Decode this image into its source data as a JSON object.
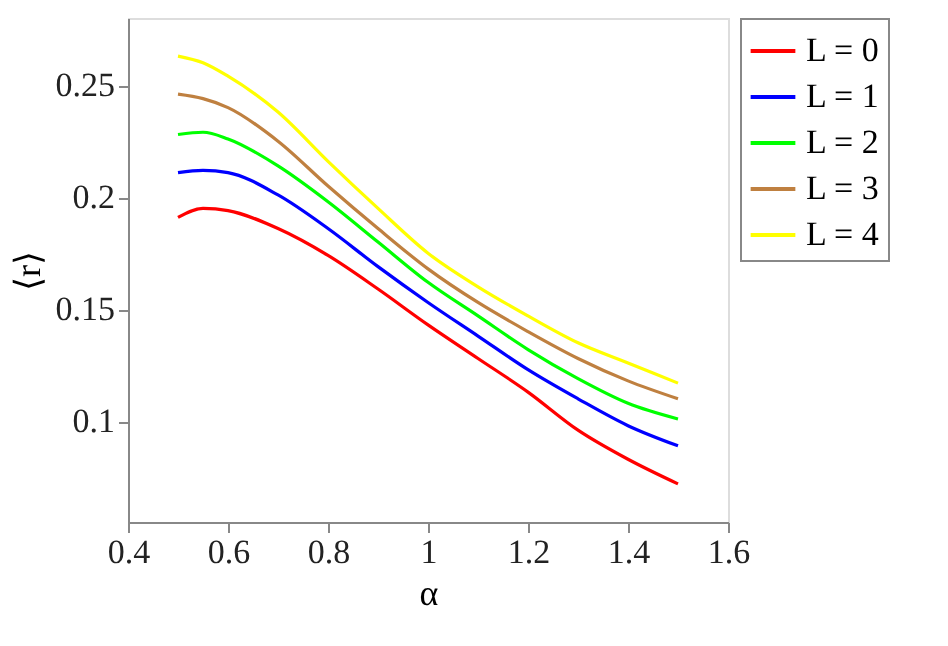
{
  "chart_data": {
    "type": "line",
    "xlabel": "α",
    "ylabel": "⟨r⟩",
    "x": [
      0.5,
      0.55,
      0.6,
      0.7,
      0.8,
      0.9,
      1.0,
      1.1,
      1.2,
      1.3,
      1.4,
      1.5
    ],
    "series": [
      {
        "name": "L = 0",
        "color": "#ff0000",
        "values": [
          0.191,
          0.195,
          0.194,
          0.186,
          0.174,
          0.159,
          0.143,
          0.128,
          0.113,
          0.096,
          0.083,
          0.072
        ]
      },
      {
        "name": "L = 1",
        "color": "#0000ff",
        "values": [
          0.211,
          0.212,
          0.211,
          0.201,
          0.186,
          0.169,
          0.153,
          0.138,
          0.123,
          0.11,
          0.098,
          0.089
        ]
      },
      {
        "name": "L = 2",
        "color": "#00ff00",
        "values": [
          0.228,
          0.229,
          0.226,
          0.214,
          0.198,
          0.18,
          0.162,
          0.147,
          0.132,
          0.119,
          0.108,
          0.101
        ]
      },
      {
        "name": "L = 3",
        "color": "#bf8040",
        "values": [
          0.246,
          0.244,
          0.24,
          0.225,
          0.205,
          0.186,
          0.168,
          0.153,
          0.14,
          0.128,
          0.118,
          0.11
        ]
      },
      {
        "name": "L = 4",
        "color": "#ffff00",
        "values": [
          0.263,
          0.26,
          0.254,
          0.238,
          0.216,
          0.195,
          0.175,
          0.16,
          0.147,
          0.135,
          0.126,
          0.117
        ]
      }
    ],
    "xlim": [
      0.4,
      1.6
    ],
    "xticks": [
      0.4,
      0.6,
      0.8,
      1,
      1.2,
      1.4,
      1.6
    ],
    "ylim": [
      0.055,
      0.28
    ],
    "yticks": [
      0.1,
      0.15,
      0.2,
      0.25
    ],
    "grid": false,
    "legend": "top right",
    "marker": "none",
    "line_style": "solid"
  }
}
